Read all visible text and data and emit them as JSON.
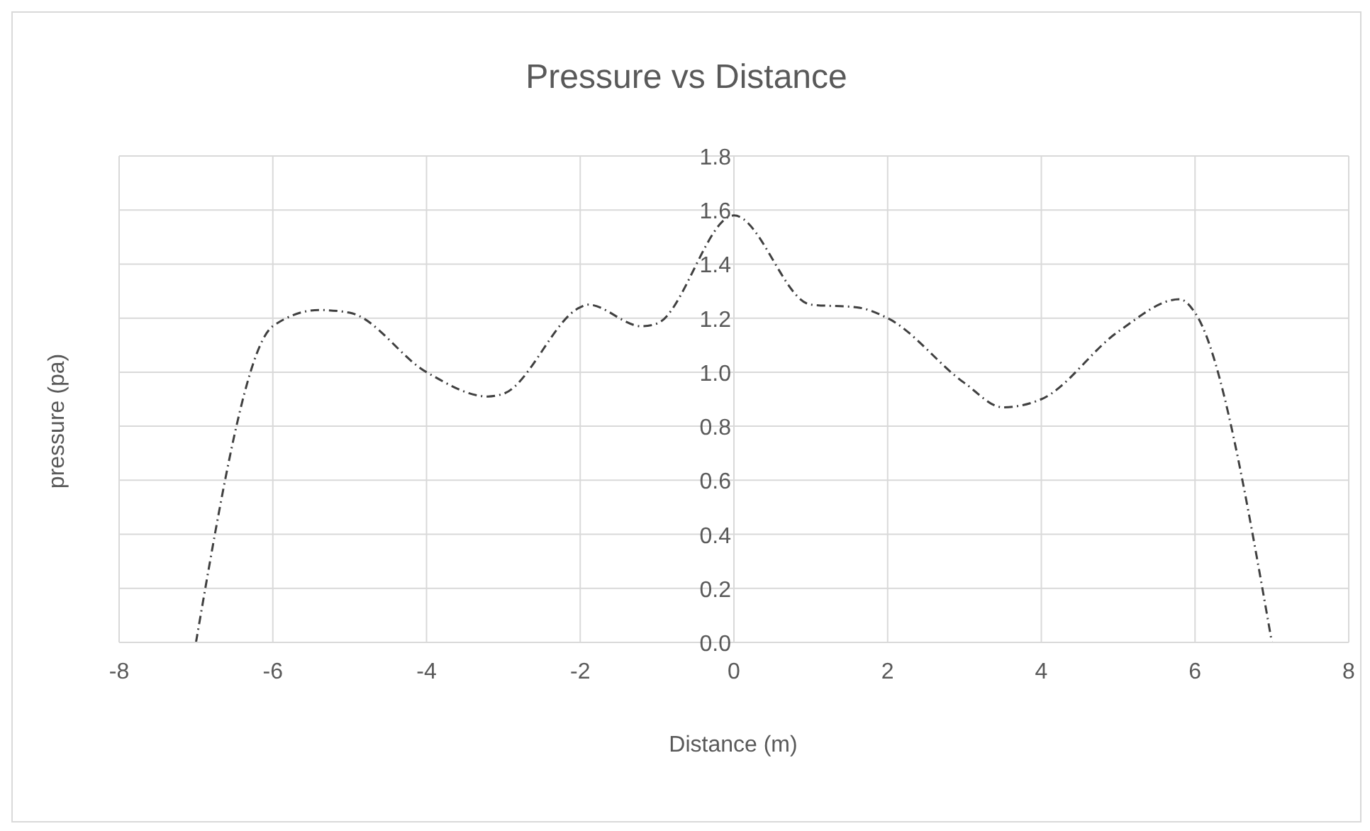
{
  "chart_data": {
    "type": "line",
    "title": "Pressure vs Distance",
    "xlabel": "Distance (m)",
    "ylabel": "pressure (pa)",
    "x": [
      -7,
      -6,
      -5.4,
      -5,
      -4,
      -3.2,
      -3,
      -2,
      -1.9,
      -1.2,
      -1,
      0,
      1,
      1.6,
      2,
      3,
      3.5,
      4,
      5,
      5.8,
      6,
      7
    ],
    "series": [
      {
        "color": "#404040",
        "values": [
          0,
          1.17,
          1.23,
          1.22,
          1.0,
          0.91,
          0.92,
          1.24,
          1.25,
          1.17,
          1.18,
          1.58,
          1.25,
          1.24,
          1.2,
          0.96,
          0.87,
          0.9,
          1.15,
          1.27,
          1.22,
          0
        ]
      }
    ],
    "xlim": [
      -8,
      8
    ],
    "xticks": [
      -8,
      -6,
      -4,
      -2,
      0,
      2,
      4,
      6,
      8
    ],
    "ylim": [
      0,
      1.8
    ],
    "yticks": [
      {
        "value": 0,
        "label": "0.0"
      },
      0.2,
      0.4,
      0.6,
      0.8,
      {
        "value": 1,
        "label": "1.0"
      },
      1.2,
      1.4,
      1.6,
      1.8
    ],
    "grid": true,
    "marker": "none",
    "line_style": "dashed",
    "legend": false
  }
}
